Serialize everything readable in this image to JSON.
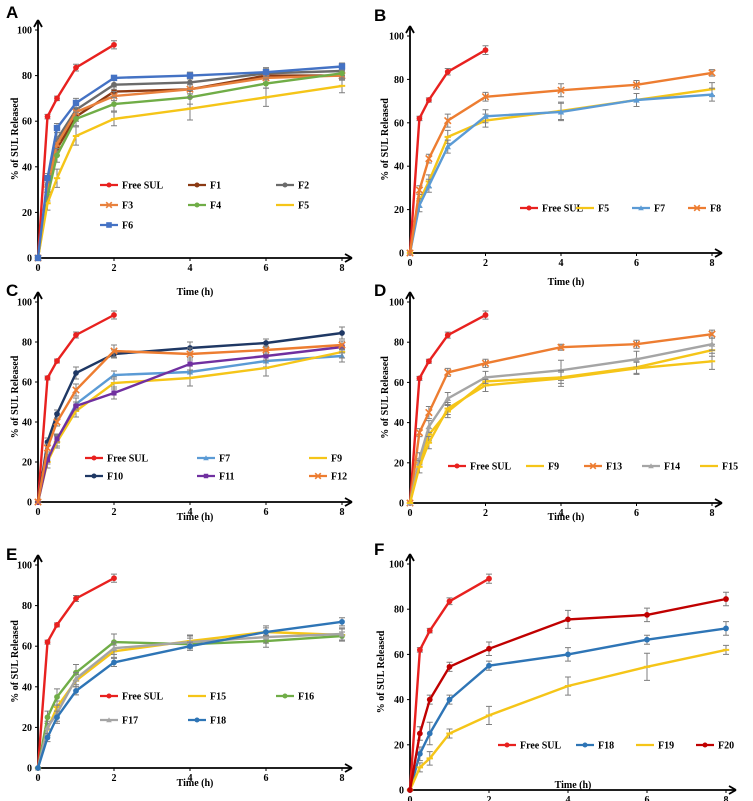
{
  "figure": {
    "y_label": "% of SUL Released",
    "x_label": "Time (h)"
  },
  "colors": {
    "Free SUL": "#e8211f",
    "F1": "#8b3a14",
    "F2": "#6b6b6b",
    "F3": "#e8813d",
    "F4": "#70ad47",
    "F5": "#f5c518",
    "F6": "#4472c4",
    "F7": "#5b9bd5",
    "F8": "#ed7d31",
    "F9": "#f5c518",
    "F10": "#1f3864",
    "F11": "#7030a0",
    "F12": "#ed7d31",
    "F13": "#ed7d31",
    "F14": "#a5a5a5",
    "F15": "#f5c518",
    "F16": "#70ad47",
    "F17": "#a5a5a5",
    "F18": "#2e75b6",
    "F19": "#f5c518",
    "F20": "#c00000",
    "axis": "#000000",
    "error_bar": "#7f7f7f"
  },
  "chart_data": [
    {
      "panel": "A",
      "type": "line",
      "xlabel": "Time (h)",
      "ylabel": "% of SUL Released",
      "xlim": [
        0,
        8
      ],
      "ylim": [
        0,
        100
      ],
      "xticks": [
        0,
        2,
        4,
        6,
        8
      ],
      "yticks": [
        0,
        20,
        40,
        60,
        80,
        100
      ],
      "legend_position": "center",
      "legend_rows": [
        [
          "Free SUL",
          "F1",
          "F2"
        ],
        [
          "F3",
          "F4",
          "F5"
        ],
        [
          "F6"
        ]
      ],
      "series": [
        {
          "name": "Free SUL",
          "x": [
            0,
            0.25,
            0.5,
            1,
            2
          ],
          "y": [
            0,
            62,
            70,
            83.5,
            93.5
          ],
          "err": [
            0,
            1,
            1,
            1.5,
            1.8
          ]
        },
        {
          "name": "F1",
          "x": [
            0,
            0.25,
            0.5,
            1,
            2,
            4,
            6,
            8
          ],
          "y": [
            0,
            30,
            48,
            62,
            73,
            74,
            80,
            80
          ],
          "err": [
            0,
            2,
            3,
            2,
            2,
            2,
            2,
            2
          ]
        },
        {
          "name": "F2",
          "x": [
            0,
            0.25,
            0.5,
            1,
            2,
            4,
            6,
            8
          ],
          "y": [
            0,
            32,
            52,
            65,
            76,
            77,
            81,
            82
          ],
          "err": [
            0,
            2,
            3,
            2,
            2,
            2,
            2,
            2
          ]
        },
        {
          "name": "F3",
          "x": [
            0,
            0.25,
            0.5,
            1,
            2,
            4,
            6,
            8
          ],
          "y": [
            0,
            30,
            50,
            64,
            71,
            74,
            79,
            80
          ],
          "err": [
            0,
            2,
            3,
            2,
            2,
            2,
            2,
            2
          ]
        },
        {
          "name": "F4",
          "x": [
            0,
            0.25,
            0.5,
            1,
            2,
            4,
            6,
            8
          ],
          "y": [
            0,
            27,
            45,
            61,
            67.5,
            70.5,
            76.5,
            81
          ],
          "err": [
            0,
            2,
            3,
            3,
            3,
            3,
            2,
            2
          ]
        },
        {
          "name": "F5",
          "x": [
            0,
            0.25,
            0.5,
            1,
            2,
            4,
            6,
            8
          ],
          "y": [
            0,
            24,
            35,
            53.5,
            61,
            65.5,
            70.5,
            75.5
          ],
          "err": [
            0,
            3,
            4,
            4,
            3,
            5,
            4,
            3
          ]
        },
        {
          "name": "F6",
          "x": [
            0,
            0.25,
            0.5,
            1,
            2,
            4,
            6,
            8
          ],
          "y": [
            0,
            35,
            57,
            68,
            79,
            80,
            81.5,
            84
          ],
          "err": [
            0,
            2,
            2,
            2,
            1,
            1.5,
            2,
            1.5
          ]
        }
      ]
    },
    {
      "panel": "B",
      "type": "line",
      "xlabel": "Time (h)",
      "ylabel": "% of SUL Released",
      "xlim": [
        0,
        8
      ],
      "ylim": [
        0,
        100
      ],
      "xticks": [
        0,
        2,
        4,
        6,
        8
      ],
      "yticks": [
        0,
        20,
        40,
        60,
        80,
        100
      ],
      "legend_position": "center-right",
      "legend_rows": [
        [
          "Free SUL",
          "F5",
          "F7",
          "F8"
        ]
      ],
      "series": [
        {
          "name": "Free SUL",
          "x": [
            0,
            0.25,
            0.5,
            1,
            2
          ],
          "y": [
            0,
            62,
            70.5,
            83.5,
            93.5
          ],
          "err": [
            0,
            1,
            1,
            1.5,
            2
          ]
        },
        {
          "name": "F5",
          "x": [
            0,
            0.25,
            0.5,
            1,
            2,
            4,
            6,
            8
          ],
          "y": [
            0,
            24,
            33,
            53.5,
            61,
            65.5,
            70.5,
            75.5
          ],
          "err": [
            0,
            3,
            3,
            3,
            3,
            4,
            3,
            3
          ]
        },
        {
          "name": "F7",
          "x": [
            0,
            0.25,
            0.5,
            1,
            2,
            4,
            6,
            8
          ],
          "y": [
            0,
            22,
            31,
            49,
            63,
            65,
            70.5,
            73
          ],
          "err": [
            0,
            3,
            3,
            3,
            3,
            4,
            3,
            3
          ]
        },
        {
          "name": "F8",
          "x": [
            0,
            0.25,
            0.5,
            1,
            2,
            4,
            6,
            8
          ],
          "y": [
            0,
            29,
            43.5,
            61,
            72,
            75,
            77.5,
            83
          ],
          "err": [
            0,
            2,
            2,
            3,
            2,
            3,
            2,
            1.5
          ]
        }
      ]
    },
    {
      "panel": "C",
      "type": "line",
      "xlabel": "Time (h)",
      "ylabel": "% of SUL Released",
      "xlim": [
        0,
        8
      ],
      "ylim": [
        0,
        100
      ],
      "xticks": [
        0,
        2,
        4,
        6,
        8
      ],
      "yticks": [
        0,
        20,
        40,
        60,
        80,
        100
      ],
      "legend_position": "center",
      "legend_rows": [
        [
          "Free SUL",
          "F7",
          "F9"
        ],
        [
          "F10",
          "F11",
          "F12"
        ]
      ],
      "series": [
        {
          "name": "Free SUL",
          "x": [
            0,
            0.25,
            0.5,
            1,
            2
          ],
          "y": [
            0,
            62,
            70.5,
            83.5,
            93.5
          ],
          "err": [
            0,
            1,
            1,
            1.5,
            2
          ]
        },
        {
          "name": "F7",
          "x": [
            0,
            0.25,
            0.5,
            1,
            2,
            4,
            6,
            8
          ],
          "y": [
            0,
            22,
            31,
            49,
            63.5,
            65,
            70.5,
            73
          ],
          "err": [
            0,
            2,
            3,
            3,
            2,
            3,
            3,
            3
          ]
        },
        {
          "name": "F9",
          "x": [
            0,
            0.25,
            0.5,
            1,
            2,
            4,
            6,
            8
          ],
          "y": [
            0,
            20,
            30,
            45.5,
            59.5,
            62,
            67,
            75
          ],
          "err": [
            0,
            3,
            3,
            3,
            3,
            4,
            4,
            3
          ]
        },
        {
          "name": "F10",
          "x": [
            0,
            0.25,
            0.5,
            1,
            2,
            4,
            6,
            8
          ],
          "y": [
            0,
            30,
            44,
            64.5,
            74,
            77,
            79.5,
            84.5
          ],
          "err": [
            0,
            2,
            2,
            3,
            2,
            3,
            2,
            3
          ]
        },
        {
          "name": "F11",
          "x": [
            0,
            0.25,
            0.5,
            1,
            2,
            4,
            6,
            8
          ],
          "y": [
            0,
            21,
            31.5,
            48,
            54.5,
            69,
            73,
            77.5
          ],
          "err": [
            0,
            2,
            2,
            2,
            3,
            3,
            2,
            3
          ]
        },
        {
          "name": "F12",
          "x": [
            0,
            0.25,
            0.5,
            1,
            2,
            4,
            6,
            8
          ],
          "y": [
            0,
            27,
            40,
            56,
            75.5,
            74,
            76,
            78.5
          ],
          "err": [
            0,
            2,
            2,
            3,
            3,
            3,
            2,
            2
          ]
        }
      ]
    },
    {
      "panel": "D",
      "type": "line",
      "xlabel": "Time (h)",
      "ylabel": "% of SUL Released",
      "xlim": [
        0,
        8
      ],
      "ylim": [
        0,
        100
      ],
      "xticks": [
        0,
        2,
        4,
        6,
        8
      ],
      "yticks": [
        0,
        20,
        40,
        60,
        80,
        100
      ],
      "legend_position": "center",
      "legend_rows": [
        [
          "Free SUL",
          "F9",
          "F13",
          "F14",
          "F15"
        ]
      ],
      "series": [
        {
          "name": "Free SUL",
          "x": [
            0,
            0.25,
            0.5,
            1,
            2
          ],
          "y": [
            0,
            62,
            70.5,
            83.5,
            93.5
          ],
          "err": [
            0,
            1,
            1,
            1.5,
            2
          ]
        },
        {
          "name": "F9",
          "x": [
            0,
            0.25,
            0.5,
            1,
            2,
            4,
            6,
            8
          ],
          "y": [
            0,
            20,
            34,
            45.5,
            60.5,
            62.5,
            67.5,
            76
          ],
          "err": [
            0,
            2,
            3,
            3,
            2,
            3,
            3,
            3
          ]
        },
        {
          "name": "F13",
          "x": [
            0,
            0.25,
            0.5,
            1,
            2,
            4,
            6,
            8
          ],
          "y": [
            0,
            35,
            45,
            65,
            69.5,
            77.5,
            79,
            84
          ],
          "err": [
            0,
            2,
            3,
            2,
            2,
            1.5,
            2,
            2
          ]
        },
        {
          "name": "F14",
          "x": [
            0,
            0.25,
            0.5,
            1,
            2,
            4,
            6,
            8
          ],
          "y": [
            0,
            22,
            38,
            52,
            62.5,
            66,
            71.5,
            79
          ],
          "err": [
            0,
            3,
            3,
            3,
            3,
            5,
            4,
            3
          ]
        },
        {
          "name": "F15",
          "x": [
            0,
            0.25,
            0.5,
            1,
            2,
            4,
            6,
            8
          ],
          "y": [
            0,
            18,
            30,
            47,
            58.5,
            62,
            67,
            70.5
          ],
          "err": [
            0,
            3,
            3,
            3,
            3,
            4,
            3,
            4
          ]
        }
      ]
    },
    {
      "panel": "E",
      "type": "line",
      "xlabel": "Time (h)",
      "ylabel": "% of SUL Released",
      "xlim": [
        0,
        8
      ],
      "ylim": [
        0,
        100
      ],
      "xticks": [
        0,
        2,
        4,
        6,
        8
      ],
      "yticks": [
        0,
        20,
        40,
        60,
        80,
        100
      ],
      "legend_position": "center",
      "legend_rows": [
        [
          "Free SUL",
          "F15",
          "F16"
        ],
        [
          "F17",
          "F18"
        ]
      ],
      "series": [
        {
          "name": "Free SUL",
          "x": [
            0,
            0.25,
            0.5,
            1,
            2
          ],
          "y": [
            0,
            62,
            70.5,
            83.5,
            93.5
          ],
          "err": [
            0,
            1,
            1,
            1.5,
            2
          ]
        },
        {
          "name": "F15",
          "x": [
            0,
            0.25,
            0.5,
            1,
            2,
            4,
            6,
            8
          ],
          "y": [
            0,
            19,
            30,
            43,
            57.5,
            62.5,
            67,
            65.5
          ],
          "err": [
            0,
            3,
            3,
            3,
            3,
            3,
            3,
            3
          ]
        },
        {
          "name": "F16",
          "x": [
            0,
            0.25,
            0.5,
            1,
            2,
            4,
            6,
            8
          ],
          "y": [
            0,
            25,
            35,
            47,
            62,
            61,
            62.5,
            65
          ],
          "err": [
            0,
            3,
            4,
            4,
            4,
            3,
            3,
            2
          ]
        },
        {
          "name": "F17",
          "x": [
            0,
            0.25,
            0.5,
            1,
            2,
            4,
            6,
            8
          ],
          "y": [
            0,
            20,
            27,
            44,
            59,
            62,
            64.5,
            66
          ],
          "err": [
            0,
            3,
            4,
            3,
            3,
            3,
            3,
            3
          ]
        },
        {
          "name": "F18",
          "x": [
            0,
            0.25,
            0.5,
            1,
            2,
            4,
            6,
            8
          ],
          "y": [
            0,
            15,
            25,
            38,
            52,
            60,
            67,
            72
          ],
          "err": [
            0,
            2,
            3,
            2,
            2,
            2,
            2,
            2
          ]
        }
      ]
    },
    {
      "panel": "F",
      "type": "line",
      "xlabel": "Time (h)",
      "ylabel": "% of SUL Released",
      "xlim": [
        0,
        8
      ],
      "ylim": [
        0,
        100
      ],
      "xticks": [
        0,
        2,
        4,
        6,
        8
      ],
      "yticks": [
        0,
        20,
        40,
        60,
        80,
        100
      ],
      "legend_position": "bottom-right",
      "legend_rows": [
        [
          "Free SUL",
          "F18",
          "F19",
          "F20"
        ]
      ],
      "series": [
        {
          "name": "Free SUL",
          "x": [
            0,
            0.25,
            0.5,
            1,
            2
          ],
          "y": [
            0,
            62,
            70.5,
            83.5,
            93.5
          ],
          "err": [
            0,
            1,
            1,
            1.5,
            2
          ]
        },
        {
          "name": "F18",
          "x": [
            0,
            0.25,
            0.5,
            1,
            2,
            4,
            6,
            8
          ],
          "y": [
            0,
            16,
            25,
            40,
            55,
            60,
            66.5,
            71.5
          ],
          "err": [
            0,
            3,
            5,
            2,
            2,
            3,
            2,
            3
          ]
        },
        {
          "name": "F19",
          "x": [
            0,
            0.25,
            0.5,
            1,
            2,
            4,
            6,
            8
          ],
          "y": [
            0,
            10,
            14,
            25,
            33,
            46,
            54.5,
            62
          ],
          "err": [
            0,
            2,
            3,
            2,
            4,
            4,
            6,
            2
          ]
        },
        {
          "name": "F20",
          "x": [
            0,
            0.25,
            0.5,
            1,
            2,
            4,
            6,
            8
          ],
          "y": [
            0,
            25,
            40,
            54.5,
            62.5,
            75.5,
            77.5,
            84.5
          ],
          "err": [
            0,
            3,
            2,
            2,
            3,
            4,
            3,
            3
          ]
        }
      ]
    }
  ]
}
